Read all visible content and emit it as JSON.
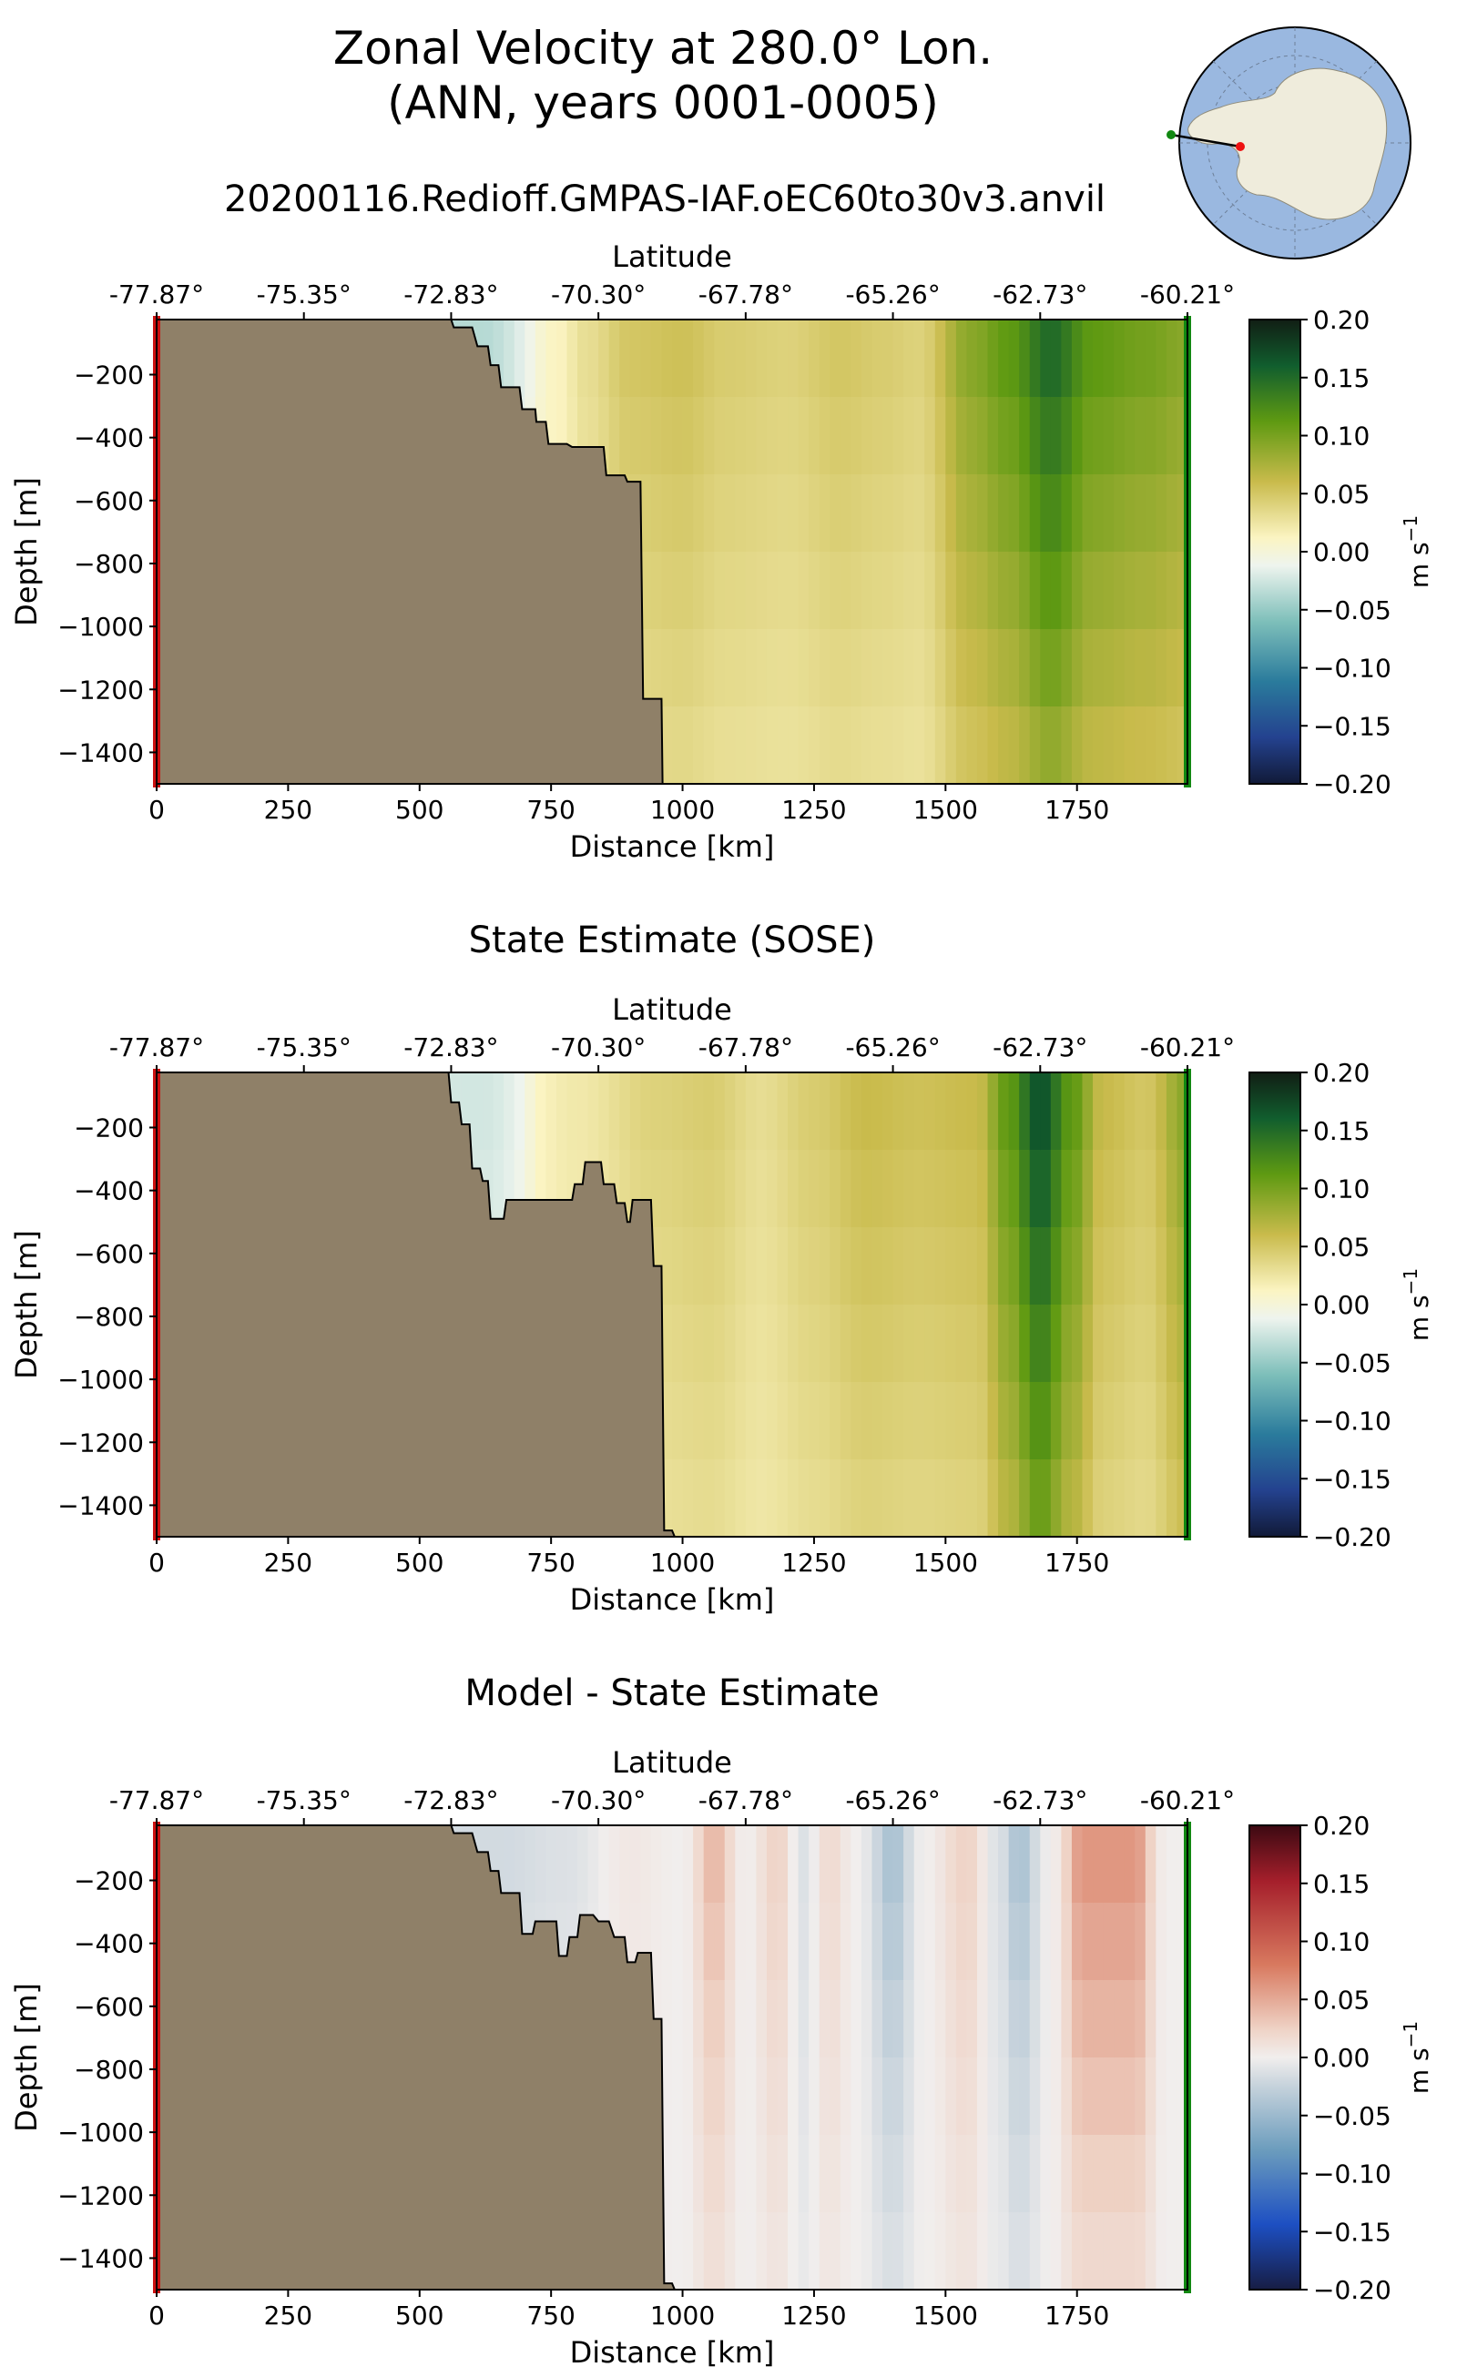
{
  "header": {
    "title_line1": "Zonal Velocity at 280.0° Lon.",
    "title_line2": "(ANN, years 0001-0005)",
    "run_name": "20200116.Redioff.GMPAS-IAF.oEC60to30v3.anvil"
  },
  "inset_map": {
    "description_icon": "antarctica-section-map",
    "start_marker_color": "#ee1111",
    "end_marker_color": "#118811",
    "ocean_color": "#9ab8e0",
    "land_color": "#efecdc"
  },
  "colors": {
    "land": "#8f8068",
    "start_bar": "#cc1111",
    "end_bar": "#118811"
  },
  "chart_data": [
    {
      "type": "heatmap",
      "title": "",
      "xlabel": "Distance [km]",
      "ylabel": "Depth [m]",
      "top_xlabel": "Latitude",
      "xlim": [
        0,
        1960
      ],
      "ylim": [
        -1500,
        -25
      ],
      "xticks": [
        0,
        250,
        500,
        750,
        1000,
        1250,
        1500,
        1750
      ],
      "xtick_labels": [
        "0",
        "250",
        "500",
        "750",
        "1000",
        "1250",
        "1500",
        "1750"
      ],
      "yticks": [
        -200,
        -400,
        -600,
        -800,
        -1000,
        -1200,
        -1400
      ],
      "ytick_labels": [
        "−200",
        "−400",
        "−600",
        "−800",
        "−1000",
        "−1200",
        "−1400"
      ],
      "lat_ticks": [
        0,
        280,
        560,
        840,
        1120,
        1400,
        1680,
        1960
      ],
      "lat_labels": [
        "-77.87°",
        "-75.35°",
        "-72.83°",
        "-70.30°",
        "-67.78°",
        "-65.26°",
        "-62.73°",
        "-60.21°"
      ],
      "colorbar": {
        "label": "m s",
        "label_exp": "−1",
        "range": [
          -0.2,
          0.2
        ],
        "ticks": [
          "0.20",
          "0.15",
          "0.10",
          "0.05",
          "0.00",
          "−0.05",
          "−0.10",
          "−0.15",
          "−0.20"
        ],
        "colormap": "delta"
      },
      "bathymetry": [
        [
          0,
          -25
        ],
        [
          560,
          -25
        ],
        [
          565,
          -50
        ],
        [
          600,
          -50
        ],
        [
          610,
          -110
        ],
        [
          630,
          -110
        ],
        [
          635,
          -170
        ],
        [
          650,
          -170
        ],
        [
          655,
          -240
        ],
        [
          690,
          -240
        ],
        [
          695,
          -310
        ],
        [
          720,
          -310
        ],
        [
          722,
          -350
        ],
        [
          740,
          -350
        ],
        [
          745,
          -420
        ],
        [
          780,
          -420
        ],
        [
          790,
          -430
        ],
        [
          850,
          -430
        ],
        [
          855,
          -520
        ],
        [
          890,
          -520
        ],
        [
          895,
          -540
        ],
        [
          920,
          -540
        ],
        [
          925,
          -1230
        ],
        [
          960,
          -1230
        ],
        [
          962,
          -1500
        ]
      ],
      "field_profile": [
        [
          0,
          0
        ],
        [
          620,
          -0.03
        ],
        [
          760,
          0.0
        ],
        [
          820,
          0.02
        ],
        [
          900,
          0.04
        ],
        [
          1000,
          0.045
        ],
        [
          1080,
          0.035
        ],
        [
          1200,
          0.03
        ],
        [
          1300,
          0.04
        ],
        [
          1380,
          0.035
        ],
        [
          1450,
          0.03
        ],
        [
          1550,
          0.08
        ],
        [
          1620,
          0.1
        ],
        [
          1700,
          0.14
        ],
        [
          1780,
          0.1
        ],
        [
          1880,
          0.09
        ],
        [
          1960,
          0.08
        ]
      ],
      "field_depth_falloff": 0.45
    },
    {
      "type": "heatmap",
      "title": "State Estimate (SOSE)",
      "xlabel": "Distance [km]",
      "ylabel": "Depth [m]",
      "top_xlabel": "Latitude",
      "xlim": [
        0,
        1960
      ],
      "ylim": [
        -1500,
        -25
      ],
      "xticks": [
        0,
        250,
        500,
        750,
        1000,
        1250,
        1500,
        1750
      ],
      "xtick_labels": [
        "0",
        "250",
        "500",
        "750",
        "1000",
        "1250",
        "1500",
        "1750"
      ],
      "yticks": [
        -200,
        -400,
        -600,
        -800,
        -1000,
        -1200,
        -1400
      ],
      "ytick_labels": [
        "−200",
        "−400",
        "−600",
        "−800",
        "−1000",
        "−1200",
        "−1400"
      ],
      "lat_ticks": [
        0,
        280,
        560,
        840,
        1120,
        1400,
        1680,
        1960
      ],
      "lat_labels": [
        "-77.87°",
        "-75.35°",
        "-72.83°",
        "-70.30°",
        "-67.78°",
        "-65.26°",
        "-62.73°",
        "-60.21°"
      ],
      "colorbar": {
        "label": "m s",
        "label_exp": "−1",
        "range": [
          -0.2,
          0.2
        ],
        "ticks": [
          "0.20",
          "0.15",
          "0.10",
          "0.05",
          "0.00",
          "−0.05",
          "−0.10",
          "−0.15",
          "−0.20"
        ],
        "colormap": "delta"
      },
      "bathymetry": [
        [
          0,
          -25
        ],
        [
          555,
          -25
        ],
        [
          560,
          -120
        ],
        [
          575,
          -120
        ],
        [
          580,
          -190
        ],
        [
          595,
          -190
        ],
        [
          600,
          -330
        ],
        [
          615,
          -330
        ],
        [
          620,
          -370
        ],
        [
          630,
          -370
        ],
        [
          635,
          -490
        ],
        [
          660,
          -490
        ],
        [
          665,
          -430
        ],
        [
          790,
          -430
        ],
        [
          795,
          -380
        ],
        [
          810,
          -380
        ],
        [
          815,
          -310
        ],
        [
          845,
          -310
        ],
        [
          850,
          -380
        ],
        [
          870,
          -380
        ],
        [
          875,
          -440
        ],
        [
          890,
          -440
        ],
        [
          895,
          -500
        ],
        [
          900,
          -500
        ],
        [
          905,
          -430
        ],
        [
          940,
          -430
        ],
        [
          945,
          -640
        ],
        [
          960,
          -640
        ],
        [
          965,
          -1480
        ],
        [
          980,
          -1480
        ],
        [
          985,
          -1500
        ]
      ],
      "field_profile": [
        [
          0,
          0
        ],
        [
          620,
          -0.02
        ],
        [
          800,
          0.01
        ],
        [
          950,
          0.03
        ],
        [
          1050,
          0.035
        ],
        [
          1150,
          0.02
        ],
        [
          1250,
          0.035
        ],
        [
          1350,
          0.05
        ],
        [
          1450,
          0.045
        ],
        [
          1560,
          0.05
        ],
        [
          1620,
          0.1
        ],
        [
          1680,
          0.16
        ],
        [
          1740,
          0.1
        ],
        [
          1800,
          0.05
        ],
        [
          1880,
          0.04
        ],
        [
          1960,
          0.08
        ]
      ],
      "field_depth_falloff": 0.4
    },
    {
      "type": "heatmap",
      "title": "Model - State Estimate",
      "xlabel": "Distance [km]",
      "ylabel": "Depth [m]",
      "top_xlabel": "Latitude",
      "xlim": [
        0,
        1960
      ],
      "ylim": [
        -1500,
        -25
      ],
      "xticks": [
        0,
        250,
        500,
        750,
        1000,
        1250,
        1500,
        1750
      ],
      "xtick_labels": [
        "0",
        "250",
        "500",
        "750",
        "1000",
        "1250",
        "1500",
        "1750"
      ],
      "yticks": [
        -200,
        -400,
        -600,
        -800,
        -1000,
        -1200,
        -1400
      ],
      "ytick_labels": [
        "−200",
        "−400",
        "−600",
        "−800",
        "−1000",
        "−1200",
        "−1400"
      ],
      "lat_ticks": [
        0,
        280,
        560,
        840,
        1120,
        1400,
        1680,
        1960
      ],
      "lat_labels": [
        "-77.87°",
        "-75.35°",
        "-72.83°",
        "-70.30°",
        "-67.78°",
        "-65.26°",
        "-62.73°",
        "-60.21°"
      ],
      "colorbar": {
        "label": "m s",
        "label_exp": "−1",
        "range": [
          -0.2,
          0.2
        ],
        "ticks": [
          "0.20",
          "0.15",
          "0.10",
          "0.05",
          "0.00",
          "−0.05",
          "−0.10",
          "−0.15",
          "−0.20"
        ],
        "colormap": "balance"
      },
      "bathymetry": [
        [
          0,
          -25
        ],
        [
          560,
          -25
        ],
        [
          565,
          -50
        ],
        [
          600,
          -50
        ],
        [
          610,
          -110
        ],
        [
          630,
          -110
        ],
        [
          635,
          -170
        ],
        [
          650,
          -170
        ],
        [
          655,
          -240
        ],
        [
          690,
          -240
        ],
        [
          695,
          -370
        ],
        [
          715,
          -370
        ],
        [
          720,
          -330
        ],
        [
          760,
          -330
        ],
        [
          765,
          -440
        ],
        [
          780,
          -440
        ],
        [
          785,
          -380
        ],
        [
          800,
          -380
        ],
        [
          805,
          -310
        ],
        [
          830,
          -310
        ],
        [
          840,
          -330
        ],
        [
          860,
          -330
        ],
        [
          870,
          -380
        ],
        [
          890,
          -380
        ],
        [
          895,
          -460
        ],
        [
          910,
          -460
        ],
        [
          915,
          -430
        ],
        [
          940,
          -430
        ],
        [
          945,
          -640
        ],
        [
          960,
          -640
        ],
        [
          965,
          -1480
        ],
        [
          980,
          -1480
        ],
        [
          985,
          -1500
        ]
      ],
      "field_profile": [
        [
          0,
          0
        ],
        [
          650,
          -0.015
        ],
        [
          780,
          -0.01
        ],
        [
          900,
          0.005
        ],
        [
          1000,
          0.0
        ],
        [
          1060,
          0.03
        ],
        [
          1120,
          0.0
        ],
        [
          1180,
          0.02
        ],
        [
          1230,
          -0.01
        ],
        [
          1280,
          0.015
        ],
        [
          1330,
          0.0
        ],
        [
          1400,
          -0.03
        ],
        [
          1460,
          0.0
        ],
        [
          1540,
          0.02
        ],
        [
          1600,
          -0.01
        ],
        [
          1640,
          -0.03
        ],
        [
          1700,
          0.0
        ],
        [
          1760,
          0.04
        ],
        [
          1860,
          0.04
        ],
        [
          1920,
          0.0
        ],
        [
          1960,
          0.0
        ]
      ],
      "field_depth_falloff": 0.6
    }
  ]
}
